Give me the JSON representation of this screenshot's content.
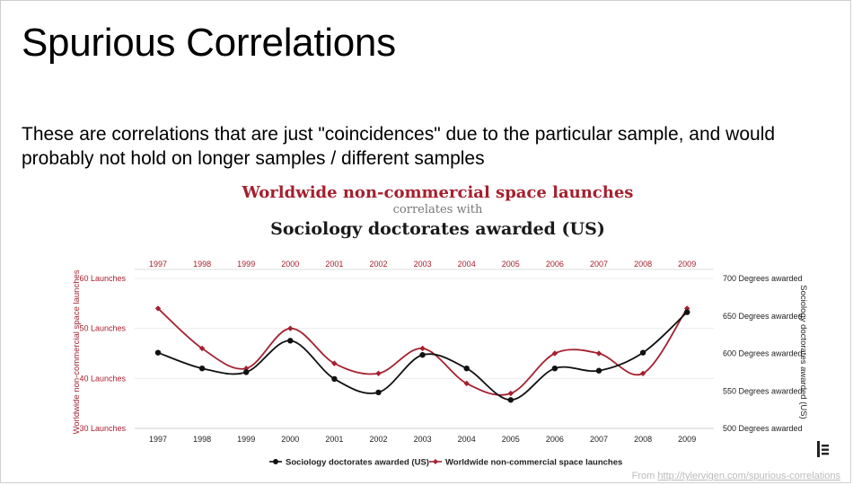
{
  "slide": {
    "title": "Spurious Correlations",
    "text": "These are correlations that are just \"coincidences\" due to the particular sample, and would probably not hold on longer samples / different samples",
    "source_prefix": "From ",
    "source_url": "http://tylervigen.com/spurious-correlations"
  },
  "chart_data": {
    "type": "line",
    "title_left_series": "Worldwide non-commercial space launches",
    "title_connector": "correlates with",
    "title_right_series": "Sociology doctorates awarded (US)",
    "x": [
      "1997",
      "1998",
      "1999",
      "2000",
      "2001",
      "2002",
      "2003",
      "2004",
      "2005",
      "2006",
      "2007",
      "2008",
      "2009"
    ],
    "y_left": {
      "label": "Worldwide non-commercial space launches",
      "range": [
        30,
        60
      ],
      "ticks": [
        30,
        40,
        50,
        60
      ],
      "tick_suffix": " Launches"
    },
    "y_right": {
      "label": "Sociology doctorates awarded (US)",
      "range": [
        500,
        700
      ],
      "ticks": [
        500,
        550,
        600,
        650,
        700
      ],
      "tick_suffix": " Degrees awarded"
    },
    "series": [
      {
        "name": "Worldwide non-commercial space launches",
        "axis": "left",
        "color": "#a5202f",
        "marker": "diamond",
        "values": [
          54,
          46,
          42,
          50,
          43,
          41,
          46,
          39,
          37,
          45,
          45,
          41,
          54
        ]
      },
      {
        "name": "Sociology doctorates awarded (US)",
        "axis": "right",
        "color": "#111111",
        "marker": "circle",
        "values": [
          601,
          580,
          575,
          617,
          566,
          548,
          598,
          580,
          538,
          580,
          577,
          601,
          655
        ]
      }
    ],
    "legend": {
      "position": "bottom",
      "items": [
        "Sociology doctorates awarded (US)",
        "Worldwide non-commercial space launches"
      ]
    },
    "grid": true
  }
}
